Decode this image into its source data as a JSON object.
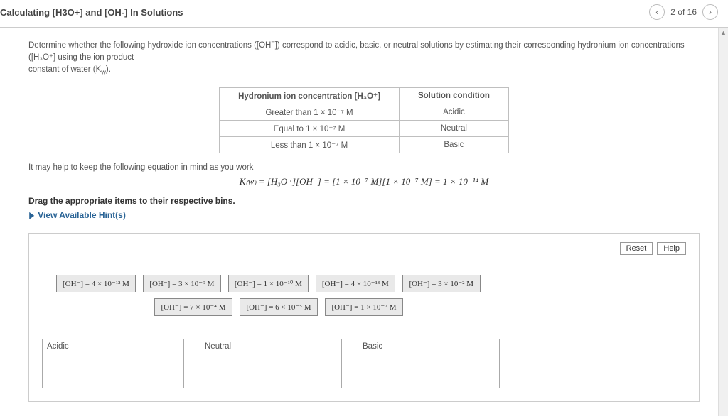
{
  "topbar": {
    "title": "Calculating [H3O+] and [OH-] In Solutions",
    "page_indicator": "2 of 16"
  },
  "instruction": {
    "line1_a": "Determine whether the following hydroxide ion concentrations ([OH",
    "line1_b": "]) correspond to acidic, basic, or neutral solutions by estimating their corresponding hydronium ion concentrations ([H₃O⁺] using the ion product",
    "line2": "constant of water (K",
    "line2_sub": "w",
    "line2_end": ")."
  },
  "ref_table": {
    "headers": [
      "Hydronium ion concentration [H₃O⁺]",
      "Solution condition"
    ],
    "rows": [
      [
        "Greater than 1 × 10⁻⁷ M",
        "Acidic"
      ],
      [
        "Equal to 1 × 10⁻⁷ M",
        "Neutral"
      ],
      [
        "Less than 1 × 10⁻⁷ M",
        "Basic"
      ]
    ]
  },
  "mid_note": "It may help to keep the following equation in mind as you work",
  "equation": "K₍w₎ = [H₃O⁺][OH⁻] = [1 × 10⁻⁷ M][1 × 10⁻⁷ M] = 1 × 10⁻¹⁴ M",
  "drag_instruction": "Drag the appropriate items to their respective bins.",
  "hints_label": "View Available Hint(s)",
  "toolbar": {
    "reset": "Reset",
    "help": "Help"
  },
  "tiles_row1": [
    "[OH⁻] = 4 × 10⁻¹² M",
    "[OH⁻] = 3 × 10⁻⁹ M",
    "[OH⁻] = 1 × 10⁻¹⁰ M",
    "[OH⁻] = 4 × 10⁻¹³ M",
    "[OH⁻] = 3 × 10⁻² M"
  ],
  "tiles_row2": [
    "[OH⁻] = 7 × 10⁻⁴ M",
    "[OH⁻] = 6 × 10⁻⁵ M",
    "[OH⁻] = 1 × 10⁻⁷ M"
  ],
  "bins": [
    "Acidic",
    "Neutral",
    "Basic"
  ]
}
